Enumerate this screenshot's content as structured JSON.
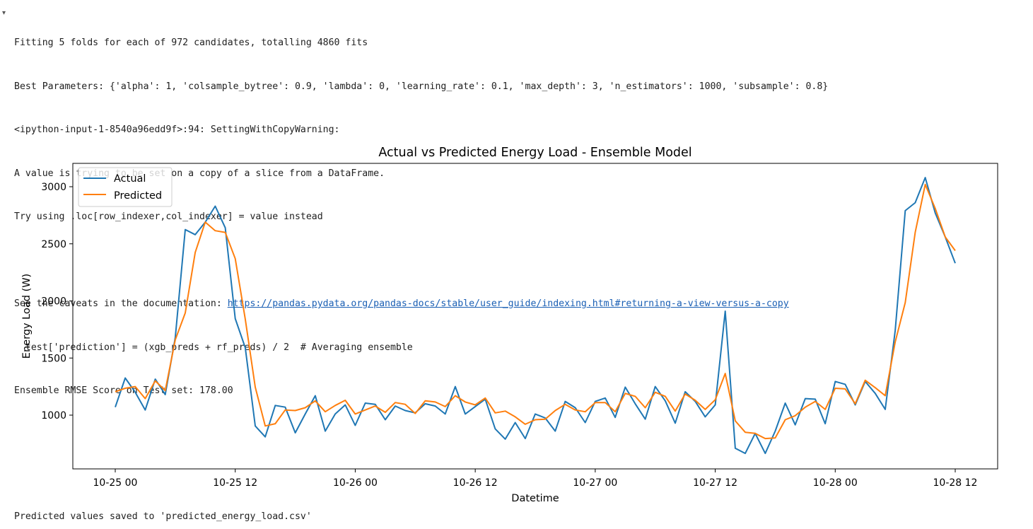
{
  "output": {
    "lines": [
      "Fitting 5 folds for each of 972 candidates, totalling 4860 fits",
      "Best Parameters: {'alpha': 1, 'colsample_bytree': 0.9, 'lambda': 0, 'learning_rate': 0.1, 'max_depth': 3, 'n_estimators': 1000, 'subsample': 0.8}",
      "<ipython-input-1-8540a96edd9f>:94: SettingWithCopyWarning:",
      "A value is trying to be set on a copy of a slice from a DataFrame.",
      "Try using .loc[row_indexer,col_indexer] = value instead",
      ""
    ],
    "caveat_prefix": "See the caveats in the documentation: ",
    "caveat_link": "https://pandas.pydata.org/pandas-docs/stable/user_guide/indexing.html#returning-a-view-versus-a-copy",
    "code_line": "  test['prediction'] = (xgb_preds + rf_preds) / 2  # Averaging ensemble",
    "rmse_line": "Ensemble RMSE Score on Test set: 178.00",
    "final_line": "Predicted values saved to 'predicted_energy_load.csv'"
  },
  "chart_data": {
    "type": "line",
    "title": "Actual vs Predicted Energy Load - Ensemble Model",
    "xlabel": "Datetime",
    "ylabel": "Energy Load (W)",
    "x_unit": "hours from 10-25 00:00",
    "xlim": [
      -4,
      79
    ],
    "ylim": [
      530,
      3210
    ],
    "x_ticks": [
      {
        "value": 0,
        "label": "10-25 00"
      },
      {
        "value": 12,
        "label": "10-25 12"
      },
      {
        "value": 24,
        "label": "10-26 00"
      },
      {
        "value": 36,
        "label": "10-26 12"
      },
      {
        "value": 48,
        "label": "10-27 00"
      },
      {
        "value": 60,
        "label": "10-27 12"
      },
      {
        "value": 72,
        "label": "10-28 00"
      },
      {
        "value": 84,
        "label": "10-28 12"
      }
    ],
    "y_ticks": [
      1000,
      1500,
      2000,
      2500,
      3000
    ],
    "legend_position": "top-left",
    "grid": false,
    "series": [
      {
        "name": "Actual",
        "color": "#1f77b4",
        "values": [
          [
            0,
            1070
          ],
          [
            1,
            1325
          ],
          [
            2,
            1200
          ],
          [
            3,
            1045
          ],
          [
            4,
            1315
          ],
          [
            5,
            1180
          ],
          [
            6,
            1680
          ],
          [
            7,
            2625
          ],
          [
            8,
            2580
          ],
          [
            9,
            2690
          ],
          [
            10,
            2830
          ],
          [
            11,
            2640
          ],
          [
            12,
            1845
          ],
          [
            13,
            1590
          ],
          [
            14,
            905
          ],
          [
            15,
            810
          ],
          [
            16,
            1085
          ],
          [
            17,
            1070
          ],
          [
            18,
            845
          ],
          [
            19,
            1010
          ],
          [
            20,
            1170
          ],
          [
            21,
            860
          ],
          [
            22,
            1010
          ],
          [
            23,
            1090
          ],
          [
            24,
            910
          ],
          [
            25,
            1105
          ],
          [
            26,
            1095
          ],
          [
            27,
            960
          ],
          [
            28,
            1080
          ],
          [
            29,
            1040
          ],
          [
            30,
            1020
          ],
          [
            31,
            1100
          ],
          [
            32,
            1080
          ],
          [
            33,
            1010
          ],
          [
            34,
            1250
          ],
          [
            35,
            1010
          ],
          [
            36,
            1075
          ],
          [
            37,
            1140
          ],
          [
            38,
            880
          ],
          [
            39,
            790
          ],
          [
            40,
            935
          ],
          [
            41,
            795
          ],
          [
            42,
            1010
          ],
          [
            43,
            975
          ],
          [
            44,
            860
          ],
          [
            45,
            1120
          ],
          [
            46,
            1065
          ],
          [
            47,
            935
          ],
          [
            48,
            1120
          ],
          [
            49,
            1150
          ],
          [
            50,
            980
          ],
          [
            51,
            1245
          ],
          [
            52,
            1100
          ],
          [
            53,
            965
          ],
          [
            54,
            1250
          ],
          [
            55,
            1125
          ],
          [
            56,
            930
          ],
          [
            57,
            1205
          ],
          [
            58,
            1120
          ],
          [
            59,
            985
          ],
          [
            60,
            1090
          ],
          [
            61,
            1910
          ],
          [
            62,
            710
          ],
          [
            63,
            665
          ],
          [
            64,
            840
          ],
          [
            65,
            665
          ],
          [
            66,
            860
          ],
          [
            67,
            1105
          ],
          [
            68,
            915
          ],
          [
            69,
            1145
          ],
          [
            70,
            1140
          ],
          [
            71,
            925
          ],
          [
            72,
            1295
          ],
          [
            73,
            1270
          ],
          [
            74,
            1090
          ],
          [
            75,
            1295
          ],
          [
            76,
            1190
          ],
          [
            77,
            1050
          ],
          [
            78,
            1740
          ],
          [
            79,
            2790
          ],
          [
            80,
            2860
          ],
          [
            81,
            3080
          ],
          [
            82,
            2770
          ],
          [
            83,
            2560
          ],
          [
            84,
            2330
          ]
        ]
      },
      {
        "name": "Predicted",
        "color": "#ff7f0e",
        "values": [
          [
            0,
            1205
          ],
          [
            1,
            1235
          ],
          [
            2,
            1250
          ],
          [
            3,
            1145
          ],
          [
            4,
            1300
          ],
          [
            5,
            1215
          ],
          [
            6,
            1660
          ],
          [
            7,
            1895
          ],
          [
            8,
            2425
          ],
          [
            9,
            2690
          ],
          [
            10,
            2615
          ],
          [
            11,
            2600
          ],
          [
            12,
            2370
          ],
          [
            13,
            1840
          ],
          [
            14,
            1245
          ],
          [
            15,
            905
          ],
          [
            16,
            925
          ],
          [
            17,
            1045
          ],
          [
            18,
            1040
          ],
          [
            19,
            1065
          ],
          [
            20,
            1125
          ],
          [
            21,
            1030
          ],
          [
            22,
            1085
          ],
          [
            23,
            1130
          ],
          [
            24,
            1010
          ],
          [
            25,
            1045
          ],
          [
            26,
            1080
          ],
          [
            27,
            1025
          ],
          [
            28,
            1110
          ],
          [
            29,
            1095
          ],
          [
            30,
            1015
          ],
          [
            31,
            1125
          ],
          [
            32,
            1115
          ],
          [
            33,
            1075
          ],
          [
            34,
            1170
          ],
          [
            35,
            1115
          ],
          [
            36,
            1090
          ],
          [
            37,
            1150
          ],
          [
            38,
            1020
          ],
          [
            39,
            1035
          ],
          [
            40,
            985
          ],
          [
            41,
            920
          ],
          [
            42,
            960
          ],
          [
            43,
            965
          ],
          [
            44,
            1040
          ],
          [
            45,
            1095
          ],
          [
            46,
            1045
          ],
          [
            47,
            1030
          ],
          [
            48,
            1110
          ],
          [
            49,
            1110
          ],
          [
            50,
            1030
          ],
          [
            51,
            1190
          ],
          [
            52,
            1165
          ],
          [
            53,
            1065
          ],
          [
            54,
            1200
          ],
          [
            55,
            1165
          ],
          [
            56,
            1035
          ],
          [
            57,
            1185
          ],
          [
            58,
            1130
          ],
          [
            59,
            1050
          ],
          [
            60,
            1135
          ],
          [
            61,
            1365
          ],
          [
            62,
            950
          ],
          [
            63,
            850
          ],
          [
            64,
            840
          ],
          [
            65,
            795
          ],
          [
            66,
            800
          ],
          [
            67,
            960
          ],
          [
            68,
            995
          ],
          [
            69,
            1070
          ],
          [
            70,
            1120
          ],
          [
            71,
            1050
          ],
          [
            72,
            1235
          ],
          [
            73,
            1230
          ],
          [
            74,
            1100
          ],
          [
            75,
            1305
          ],
          [
            76,
            1240
          ],
          [
            77,
            1170
          ],
          [
            78,
            1640
          ],
          [
            79,
            1985
          ],
          [
            80,
            2600
          ],
          [
            81,
            3020
          ],
          [
            82,
            2810
          ],
          [
            83,
            2560
          ],
          [
            84,
            2440
          ]
        ]
      }
    ]
  }
}
